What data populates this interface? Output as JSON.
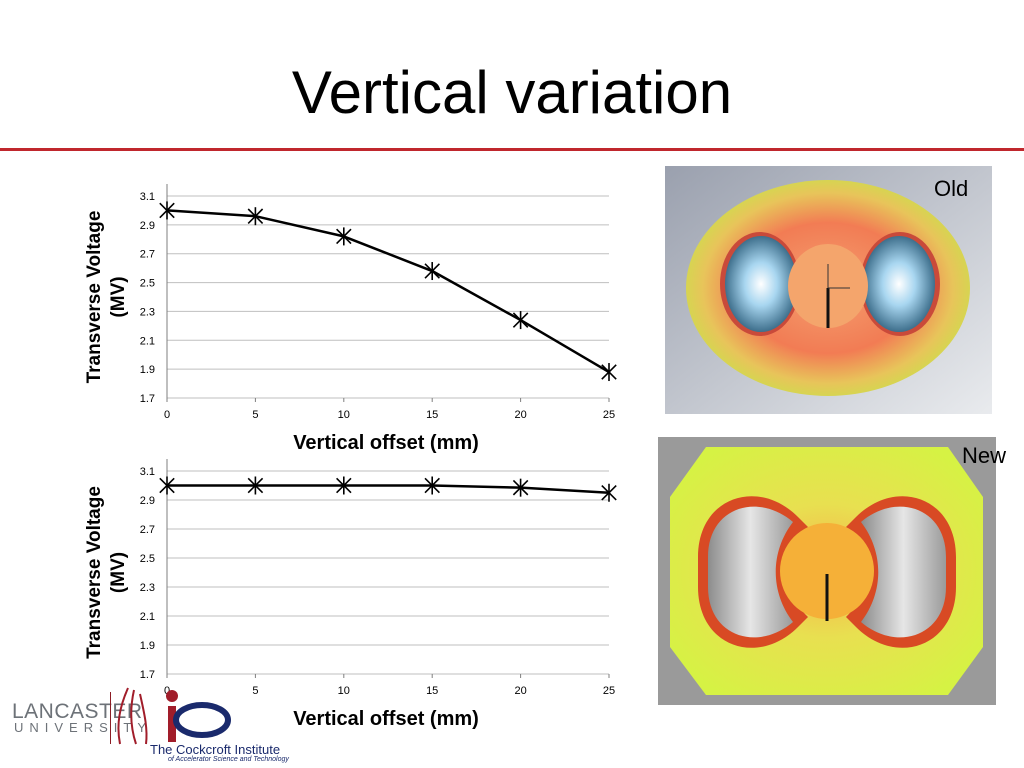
{
  "slide": {
    "title": "Vertical variation",
    "label_old": "Old",
    "label_new": "New",
    "logo_lancaster_name": "LANCASTER",
    "logo_lancaster_sub": "UNIVERSITY",
    "logo_ci_name": "The Cockcroft Institute",
    "logo_ci_sub": "of Accelerator Science and Technology"
  },
  "colors": {
    "accent_rule": "#c0272d",
    "series": "#000000",
    "grid": "#bfbfbf"
  },
  "chart_data": [
    {
      "type": "line",
      "xlabel": "Vertical offset (mm)",
      "ylabel_line1": "Transverse Voltage",
      "ylabel_line2": "(MV)",
      "xlim": [
        0,
        25
      ],
      "ylim": [
        1.7,
        3.1
      ],
      "x_ticks": [
        "0",
        "5",
        "10",
        "15",
        "20",
        "25"
      ],
      "y_ticks": [
        "1.7",
        "1.9",
        "2.1",
        "2.3",
        "2.5",
        "2.7",
        "2.9",
        "3.1"
      ],
      "grid": true,
      "marker": "star",
      "series": [
        {
          "x": [
            0,
            5,
            10,
            15,
            20,
            25
          ],
          "y": [
            3.0,
            2.96,
            2.82,
            2.58,
            2.24,
            1.88
          ]
        }
      ]
    },
    {
      "type": "line",
      "xlabel": "Vertical offset (mm)",
      "ylabel_line1": "Transverse Voltage",
      "ylabel_line2": "(MV)",
      "xlim": [
        0,
        25
      ],
      "ylim": [
        1.7,
        3.1
      ],
      "x_ticks": [
        "0",
        "5",
        "10",
        "15",
        "20",
        "25"
      ],
      "y_ticks": [
        "1.7",
        "1.9",
        "2.1",
        "2.3",
        "2.5",
        "2.7",
        "2.9",
        "3.1"
      ],
      "grid": true,
      "marker": "star",
      "series": [
        {
          "x": [
            0,
            5,
            10,
            15,
            20,
            25
          ],
          "y": [
            3.0,
            3.0,
            3.0,
            3.0,
            2.985,
            2.95
          ]
        }
      ]
    }
  ]
}
